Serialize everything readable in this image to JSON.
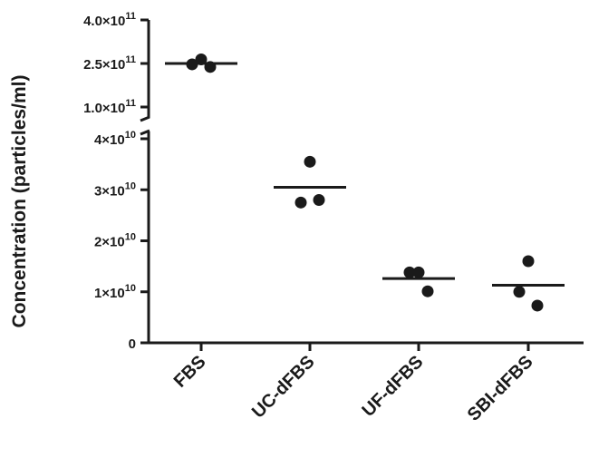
{
  "chart_data": {
    "type": "scatter",
    "title": "",
    "xlabel": "",
    "ylabel": "Concentration (particles/ml)",
    "categories": [
      "FBS",
      "UC-dFBS",
      "UF-dFBS",
      "SBI-dFBS"
    ],
    "broken_axis": true,
    "lower_segment": {
      "ylim": [
        0,
        40000000000
      ],
      "ticks": [
        {
          "value": 0,
          "label": "0"
        },
        {
          "value": 10000000000,
          "label": "1×10",
          "exp": "10"
        },
        {
          "value": 20000000000,
          "label": "2×10",
          "exp": "10"
        },
        {
          "value": 30000000000,
          "label": "3×10",
          "exp": "10"
        },
        {
          "value": 40000000000,
          "label": "4×10",
          "exp": "10"
        }
      ]
    },
    "upper_segment": {
      "ylim": [
        100000000000,
        400000000000
      ],
      "ticks": [
        {
          "value": 100000000000,
          "label": "1.0×10",
          "exp": "11"
        },
        {
          "value": 250000000000,
          "label": "2.5×10",
          "exp": "11"
        },
        {
          "value": 400000000000,
          "label": "4.0×10",
          "exp": "11"
        }
      ]
    },
    "series": [
      {
        "category": "FBS",
        "points": [
          264000000000,
          247000000000,
          238000000000
        ],
        "mean": 250000000000
      },
      {
        "category": "UC-dFBS",
        "points": [
          35500000000,
          27500000000,
          28000000000
        ],
        "mean": 30500000000
      },
      {
        "category": "UF-dFBS",
        "points": [
          13800000000,
          13800000000,
          10100000000
        ],
        "mean": 12600000000
      },
      {
        "category": "SBI-dFBS",
        "points": [
          16000000000,
          10000000000,
          7300000000
        ],
        "mean": 11300000000
      }
    ],
    "colors": {
      "marker": "#1a1a1a",
      "axis": "#1a1a1a"
    }
  }
}
